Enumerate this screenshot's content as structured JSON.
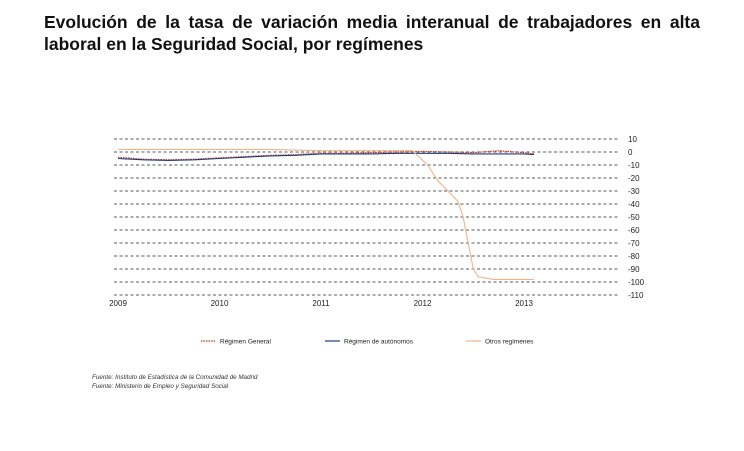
{
  "title": "Evolución de la tasa de variación media interanual de trabajadores en alta laboral en la Seguridad Social, por  regímenes",
  "sources": [
    "Fuente: Instituto de Estadística de la Comunidad de Madrid",
    "Fuente: Ministerio de Empleo y Seguridad Social"
  ],
  "chart_data": {
    "type": "line",
    "title": "Evolución de la tasa de variación media interanual de trabajadores en alta laboral en la Seguridad Social, por  regímenes",
    "xlabel": "",
    "ylabel": "",
    "x_ticks": [
      "2009",
      "2010",
      "2011",
      "2012",
      "2013"
    ],
    "y_ticks": [
      10,
      0,
      -10,
      -20,
      -30,
      -40,
      -50,
      -60,
      -70,
      -80,
      -90,
      -100,
      -110
    ],
    "xlim": [
      2009.0,
      2014.0
    ],
    "ylim": [
      -110,
      10
    ],
    "y_axis_side": "right",
    "grid": "horizontal dashed",
    "legend_position": "bottom",
    "series": [
      {
        "name": "Régimen General",
        "color": "#c0392b",
        "dash": "dotted",
        "x": [
          2009.0,
          2009.25,
          2009.5,
          2009.75,
          2010.0,
          2010.25,
          2010.5,
          2010.75,
          2011.0,
          2011.25,
          2011.5,
          2011.75,
          2012.0,
          2012.25,
          2012.5,
          2012.75,
          2013.0,
          2013.1
        ],
        "y": [
          -4,
          -5.5,
          -6,
          -5.5,
          -4.5,
          -3.5,
          -2.5,
          -2,
          -1,
          -1,
          -0.5,
          0,
          0.5,
          0,
          -0.5,
          1,
          -0.5,
          -1.5
        ]
      },
      {
        "name": "Régimen de autónomos",
        "color": "#1f3d7a",
        "dash": "solid",
        "x": [
          2009.0,
          2009.25,
          2009.5,
          2009.75,
          2010.0,
          2010.25,
          2010.5,
          2010.75,
          2011.0,
          2011.25,
          2011.5,
          2011.75,
          2012.0,
          2012.25,
          2012.5,
          2012.75,
          2013.0,
          2013.1
        ],
        "y": [
          -5,
          -6,
          -6.5,
          -6,
          -5,
          -4,
          -3,
          -2.5,
          -1.5,
          -1.5,
          -1.5,
          -1,
          -1,
          -1,
          -1.5,
          -1.5,
          -1.5,
          -2
        ]
      },
      {
        "name": "Otros regímenes",
        "color": "#f0b48a",
        "dash": "solid",
        "x": [
          2009.0,
          2009.5,
          2010.0,
          2010.5,
          2011.0,
          2011.5,
          2011.9,
          2012.05,
          2012.15,
          2012.25,
          2012.35,
          2012.4,
          2012.45,
          2012.5,
          2012.55,
          2012.7,
          2013.0,
          2013.1
        ],
        "y": [
          2,
          2,
          2,
          2,
          1,
          1,
          1,
          -10,
          -22,
          -30,
          -38,
          -50,
          -70,
          -90,
          -96,
          -98,
          -98,
          -98
        ]
      }
    ]
  }
}
